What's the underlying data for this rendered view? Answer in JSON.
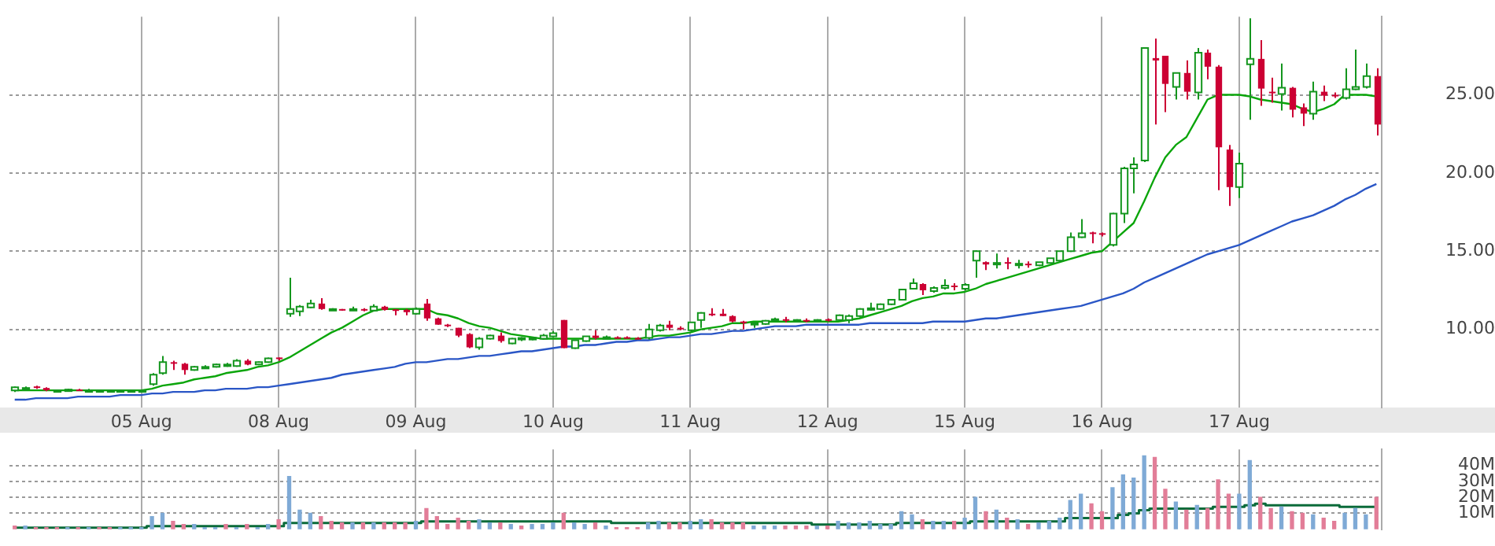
{
  "chart_data": [
    {
      "type": "candlestick",
      "categories": [
        null,
        null,
        null,
        null,
        null,
        null,
        null,
        null,
        null,
        null,
        null,
        null,
        "05 Aug",
        null,
        null,
        null,
        null,
        null,
        null,
        null,
        null,
        null,
        null,
        null,
        null,
        "08 Aug",
        null,
        null,
        null,
        null,
        null,
        null,
        null,
        null,
        null,
        null,
        null,
        null,
        "09 Aug",
        null,
        null,
        null,
        null,
        null,
        null,
        null,
        null,
        null,
        null,
        null,
        null,
        "10 Aug",
        null,
        null,
        null,
        null,
        null,
        null,
        null,
        null,
        null,
        null,
        null,
        null,
        "11 Aug",
        null,
        null,
        null,
        null,
        null,
        null,
        null,
        null,
        null,
        null,
        null,
        null,
        "12 Aug",
        null,
        null,
        null,
        null,
        null,
        null,
        null,
        null,
        null,
        null,
        null,
        null,
        "15 Aug",
        null,
        null,
        null,
        null,
        null,
        null,
        null,
        null,
        null,
        null,
        null,
        null,
        "16 Aug",
        null,
        null,
        null,
        null,
        null,
        null,
        null,
        null,
        null,
        null,
        null,
        null,
        "17 Aug",
        null,
        null,
        null,
        null,
        null,
        null,
        null,
        null,
        null,
        null,
        null,
        null,
        null
      ],
      "ohlc": [
        [
          6.1,
          6.35,
          6.0,
          6.3
        ],
        [
          6.25,
          6.35,
          6.2,
          6.25
        ],
        [
          6.35,
          6.4,
          6.2,
          6.25
        ],
        [
          6.25,
          6.3,
          6.05,
          6.1
        ],
        [
          6.1,
          6.15,
          6.05,
          6.1
        ],
        [
          6.1,
          6.2,
          6.05,
          6.15
        ],
        [
          6.15,
          6.2,
          6.1,
          6.1
        ],
        [
          6.1,
          6.2,
          6.05,
          6.1
        ],
        [
          6.1,
          6.15,
          6.05,
          6.1
        ],
        [
          6.1,
          6.15,
          6.05,
          6.1
        ],
        [
          6.05,
          6.15,
          6.0,
          6.1
        ],
        [
          6.1,
          6.15,
          6.05,
          6.1
        ],
        [
          6.1,
          6.15,
          6.05,
          6.1
        ],
        [
          6.5,
          7.2,
          6.4,
          7.1
        ],
        [
          7.2,
          8.3,
          7.1,
          7.9
        ],
        [
          7.9,
          8.0,
          7.4,
          7.8
        ],
        [
          7.8,
          7.85,
          7.1,
          7.4
        ],
        [
          7.4,
          7.65,
          7.35,
          7.6
        ],
        [
          7.6,
          7.7,
          7.5,
          7.6
        ],
        [
          7.6,
          7.8,
          7.55,
          7.75
        ],
        [
          7.75,
          7.85,
          7.6,
          7.75
        ],
        [
          7.65,
          8.1,
          7.6,
          8.0
        ],
        [
          8.0,
          8.1,
          7.7,
          7.75
        ],
        [
          7.75,
          7.95,
          7.7,
          7.9
        ],
        [
          7.9,
          8.2,
          7.85,
          8.15
        ],
        [
          8.2,
          8.2,
          8.0,
          8.15
        ],
        [
          11.0,
          13.3,
          10.8,
          11.3
        ],
        [
          11.15,
          11.55,
          10.85,
          11.45
        ],
        [
          11.4,
          11.9,
          11.35,
          11.65
        ],
        [
          11.65,
          12.0,
          11.25,
          11.3
        ],
        [
          11.3,
          11.35,
          11.2,
          11.3
        ],
        [
          11.3,
          11.3,
          11.2,
          11.25
        ],
        [
          11.25,
          11.45,
          11.2,
          11.3
        ],
        [
          11.3,
          11.35,
          11.15,
          11.25
        ],
        [
          11.2,
          11.6,
          11.15,
          11.45
        ],
        [
          11.45,
          11.5,
          11.2,
          11.25
        ],
        [
          11.28,
          11.3,
          10.9,
          11.25
        ],
        [
          11.25,
          11.3,
          10.9,
          11.1
        ],
        [
          11.0,
          11.4,
          10.95,
          11.3
        ],
        [
          11.65,
          11.95,
          10.55,
          10.7
        ],
        [
          10.7,
          10.75,
          10.3,
          10.3
        ],
        [
          10.3,
          10.35,
          10.15,
          10.2
        ],
        [
          10.1,
          10.1,
          9.5,
          9.6
        ],
        [
          9.7,
          9.75,
          8.8,
          8.85
        ],
        [
          8.85,
          9.5,
          8.7,
          9.4
        ],
        [
          9.4,
          9.65,
          9.35,
          9.6
        ],
        [
          9.6,
          9.8,
          9.15,
          9.25
        ],
        [
          9.1,
          9.45,
          9.05,
          9.4
        ],
        [
          9.45,
          9.5,
          9.25,
          9.45
        ],
        [
          9.4,
          9.5,
          9.3,
          9.45
        ],
        [
          9.4,
          9.7,
          9.35,
          9.6
        ],
        [
          9.55,
          9.9,
          9.5,
          9.75
        ],
        [
          10.6,
          10.6,
          8.8,
          8.8
        ],
        [
          8.8,
          9.3,
          8.75,
          9.3
        ],
        [
          9.25,
          9.55,
          9.2,
          9.55
        ],
        [
          9.6,
          9.95,
          9.35,
          9.45
        ],
        [
          9.5,
          9.6,
          9.4,
          9.5
        ],
        [
          9.5,
          9.55,
          9.4,
          9.4
        ],
        [
          9.5,
          9.55,
          9.4,
          9.4
        ],
        [
          9.45,
          9.5,
          9.35,
          9.4
        ],
        [
          9.45,
          10.35,
          9.35,
          10.0
        ],
        [
          9.95,
          10.35,
          9.85,
          10.25
        ],
        [
          10.3,
          10.55,
          9.95,
          10.1
        ],
        [
          10.1,
          10.2,
          9.95,
          10.05
        ],
        [
          9.95,
          10.45,
          9.85,
          10.45
        ],
        [
          10.6,
          11.1,
          10.1,
          11.05
        ],
        [
          11.0,
          11.35,
          10.85,
          10.95
        ],
        [
          11.0,
          11.3,
          10.85,
          10.85
        ],
        [
          10.85,
          10.9,
          10.45,
          10.5
        ],
        [
          10.5,
          10.55,
          10.0,
          10.4
        ],
        [
          10.35,
          10.45,
          10.1,
          10.4
        ],
        [
          10.35,
          10.6,
          10.3,
          10.55
        ],
        [
          10.6,
          10.75,
          10.5,
          10.65
        ],
        [
          10.65,
          10.8,
          10.45,
          10.6
        ],
        [
          10.55,
          10.65,
          10.45,
          10.6
        ],
        [
          10.6,
          10.7,
          10.45,
          10.5
        ],
        [
          10.55,
          10.65,
          10.45,
          10.6
        ],
        [
          10.65,
          10.7,
          10.5,
          10.55
        ],
        [
          10.6,
          10.95,
          10.55,
          10.9
        ],
        [
          10.6,
          10.95,
          10.4,
          10.85
        ],
        [
          10.85,
          11.35,
          10.8,
          11.3
        ],
        [
          11.3,
          11.7,
          11.2,
          11.35
        ],
        [
          11.3,
          11.65,
          11.25,
          11.6
        ],
        [
          11.6,
          11.95,
          11.55,
          11.9
        ],
        [
          11.9,
          12.55,
          11.85,
          12.55
        ],
        [
          12.6,
          13.25,
          12.55,
          12.95
        ],
        [
          12.9,
          12.95,
          12.2,
          12.5
        ],
        [
          12.45,
          12.75,
          12.35,
          12.65
        ],
        [
          12.65,
          13.2,
          12.55,
          12.8
        ],
        [
          12.8,
          12.95,
          12.5,
          12.75
        ],
        [
          12.6,
          12.95,
          12.5,
          12.85
        ],
        [
          14.4,
          15.05,
          13.3,
          15.0
        ],
        [
          14.3,
          14.35,
          13.8,
          14.15
        ],
        [
          14.2,
          14.85,
          13.9,
          14.25
        ],
        [
          14.3,
          14.6,
          13.85,
          14.2
        ],
        [
          14.15,
          14.45,
          13.9,
          14.2
        ],
        [
          14.2,
          14.35,
          13.95,
          14.15
        ],
        [
          14.1,
          14.3,
          14.05,
          14.3
        ],
        [
          14.25,
          14.55,
          14.2,
          14.55
        ],
        [
          14.4,
          15.0,
          14.3,
          15.0
        ],
        [
          15.0,
          16.2,
          14.95,
          15.9
        ],
        [
          15.9,
          17.05,
          15.85,
          16.15
        ],
        [
          16.2,
          16.25,
          15.5,
          16.1
        ],
        [
          16.15,
          16.2,
          15.95,
          16.1
        ],
        [
          15.4,
          17.45,
          15.3,
          17.4
        ],
        [
          17.4,
          20.4,
          16.8,
          20.3
        ],
        [
          20.3,
          21.0,
          18.7,
          20.55
        ],
        [
          20.8,
          28.05,
          20.7,
          28.0
        ],
        [
          27.35,
          28.6,
          23.1,
          27.2
        ],
        [
          27.5,
          27.5,
          23.9,
          25.7
        ],
        [
          25.5,
          26.4,
          24.7,
          26.4
        ],
        [
          26.4,
          27.2,
          24.7,
          25.2
        ],
        [
          25.15,
          28.0,
          24.7,
          27.7
        ],
        [
          27.7,
          27.9,
          26.0,
          26.8
        ],
        [
          26.8,
          26.9,
          18.9,
          21.65
        ],
        [
          21.5,
          21.8,
          17.9,
          19.1
        ],
        [
          19.1,
          21.3,
          18.4,
          20.6
        ],
        [
          26.95,
          29.9,
          23.4,
          27.3
        ],
        [
          27.3,
          28.5,
          24.3,
          25.4
        ],
        [
          25.2,
          26.1,
          24.5,
          25.1
        ],
        [
          25.05,
          27.0,
          24.0,
          25.45
        ],
        [
          25.45,
          25.5,
          23.55,
          24.05
        ],
        [
          24.2,
          24.45,
          23.0,
          23.8
        ],
        [
          23.8,
          25.85,
          23.4,
          25.2
        ],
        [
          25.2,
          25.6,
          24.6,
          24.95
        ],
        [
          25.0,
          25.15,
          24.8,
          24.95
        ],
        [
          24.8,
          26.7,
          24.7,
          25.35
        ],
        [
          25.35,
          27.9,
          25.3,
          25.5
        ],
        [
          25.5,
          27.0,
          25.4,
          26.2
        ],
        [
          26.2,
          26.7,
          22.4,
          23.1
        ]
      ],
      "series": [
        {
          "type": "line",
          "color": "#0aa50a",
          "values": [
            6.1,
            6.1,
            6.1,
            6.1,
            6.1,
            6.1,
            6.1,
            6.1,
            6.1,
            6.1,
            6.1,
            6.1,
            6.1,
            6.2,
            6.4,
            6.5,
            6.6,
            6.8,
            6.9,
            7.0,
            7.2,
            7.3,
            7.4,
            7.6,
            7.7,
            7.9,
            8.2,
            8.6,
            9.0,
            9.4,
            9.8,
            10.1,
            10.5,
            10.9,
            11.2,
            11.3,
            11.3,
            11.3,
            11.3,
            11.3,
            11.0,
            10.9,
            10.7,
            10.4,
            10.2,
            10.1,
            9.9,
            9.7,
            9.6,
            9.5,
            9.4,
            9.4,
            9.4,
            9.4,
            9.4,
            9.4,
            9.4,
            9.4,
            9.4,
            9.4,
            9.5,
            9.6,
            9.6,
            9.7,
            9.8,
            10.0,
            10.1,
            10.2,
            10.4,
            10.4,
            10.5,
            10.5,
            10.5,
            10.5,
            10.5,
            10.5,
            10.5,
            10.5,
            10.5,
            10.6,
            10.7,
            10.9,
            11.1,
            11.3,
            11.5,
            11.8,
            12.0,
            12.1,
            12.3,
            12.3,
            12.4,
            12.6,
            12.9,
            13.1,
            13.3,
            13.5,
            13.7,
            13.9,
            14.1,
            14.3,
            14.5,
            14.7,
            14.9,
            15.0,
            15.6,
            16.2,
            16.8,
            18.2,
            19.7,
            21.0,
            21.8,
            22.3,
            23.5,
            24.7,
            25.0,
            25.0,
            25.0,
            24.9,
            24.7,
            24.6,
            24.5,
            24.4,
            24.1,
            23.9,
            24.1,
            24.4,
            25.0,
            25.0,
            25.0,
            24.9
          ]
        },
        {
          "type": "line",
          "color": "#2a56c6",
          "values": [
            5.5,
            5.5,
            5.6,
            5.6,
            5.6,
            5.6,
            5.7,
            5.7,
            5.7,
            5.7,
            5.8,
            5.8,
            5.8,
            5.9,
            5.9,
            6.0,
            6.0,
            6.0,
            6.1,
            6.1,
            6.2,
            6.2,
            6.2,
            6.3,
            6.3,
            6.4,
            6.5,
            6.6,
            6.7,
            6.8,
            6.9,
            7.1,
            7.2,
            7.3,
            7.4,
            7.5,
            7.6,
            7.8,
            7.9,
            7.9,
            8.0,
            8.1,
            8.1,
            8.2,
            8.3,
            8.3,
            8.4,
            8.5,
            8.6,
            8.6,
            8.7,
            8.8,
            8.9,
            8.9,
            9.0,
            9.0,
            9.1,
            9.2,
            9.2,
            9.3,
            9.3,
            9.4,
            9.5,
            9.5,
            9.6,
            9.7,
            9.7,
            9.8,
            9.9,
            9.9,
            10.0,
            10.1,
            10.2,
            10.2,
            10.2,
            10.3,
            10.3,
            10.3,
            10.3,
            10.3,
            10.3,
            10.4,
            10.4,
            10.4,
            10.4,
            10.4,
            10.4,
            10.5,
            10.5,
            10.5,
            10.5,
            10.6,
            10.7,
            10.7,
            10.8,
            10.9,
            11.0,
            11.1,
            11.2,
            11.3,
            11.4,
            11.5,
            11.7,
            11.9,
            12.1,
            12.3,
            12.6,
            13.0,
            13.3,
            13.6,
            13.9,
            14.2,
            14.5,
            14.8,
            15.0,
            15.2,
            15.4,
            15.7,
            16.0,
            16.3,
            16.6,
            16.9,
            17.1,
            17.3,
            17.6,
            17.9,
            18.3,
            18.6,
            19.0,
            19.3
          ]
        }
      ],
      "ylim": [
        5,
        30
      ],
      "yticks": [
        {
          "value": 10,
          "label": "10.00"
        },
        {
          "value": 15,
          "label": "15.00"
        },
        {
          "value": 20,
          "label": "20.00"
        },
        {
          "value": 25,
          "label": "25.00"
        }
      ],
      "grid": true
    },
    {
      "type": "bar",
      "categories": [
        null,
        null,
        null,
        null,
        null,
        null,
        null,
        null,
        null,
        null,
        null,
        null,
        null,
        null,
        null,
        null,
        null,
        null,
        null,
        null,
        null,
        null,
        null,
        null,
        null,
        null,
        null,
        null,
        null,
        null,
        null,
        null,
        null,
        null,
        null,
        null,
        null,
        null,
        null,
        null,
        null,
        null,
        null,
        null,
        null,
        null,
        null,
        null,
        null,
        null,
        null,
        null,
        null,
        null,
        null,
        null,
        null,
        null,
        null,
        null,
        null,
        null,
        null,
        null,
        null,
        null,
        null,
        null,
        null,
        null,
        null,
        null,
        null,
        null,
        null,
        null,
        null,
        null,
        null,
        null,
        null,
        null,
        null,
        null,
        null,
        null,
        null,
        null,
        null,
        null,
        null,
        null,
        null,
        null,
        null,
        null,
        null,
        null,
        null,
        null,
        null,
        null,
        null,
        null,
        null,
        null,
        null,
        null,
        null,
        null,
        null,
        null,
        null,
        null,
        null,
        null,
        null,
        null,
        null,
        null,
        null,
        null,
        null,
        null,
        null,
        null,
        null,
        null,
        null,
        null
      ],
      "series": [
        {
          "type": "bar",
          "values": [
            2,
            2,
            1,
            1,
            1,
            1,
            1,
            1,
            1,
            1,
            1,
            1,
            1,
            8,
            10,
            5,
            3,
            3,
            1,
            1,
            3,
            1,
            3,
            1,
            3,
            6,
            33,
            12,
            10,
            8,
            5,
            4,
            4,
            4,
            4,
            4,
            4,
            4,
            5,
            13,
            8,
            3,
            7,
            5,
            6,
            4,
            4,
            3,
            2,
            3,
            3,
            4,
            10,
            4,
            3,
            4,
            2,
            1,
            1,
            1,
            4,
            5,
            4,
            4,
            5,
            6,
            6,
            4,
            4,
            4,
            2,
            2,
            2,
            2,
            2,
            2,
            2,
            2,
            5,
            4,
            4,
            5,
            3,
            3,
            11,
            9,
            6,
            5,
            5,
            5,
            7,
            20,
            11,
            12,
            7,
            6,
            3,
            4,
            5,
            7,
            18,
            22,
            16,
            11,
            26,
            34,
            32,
            46,
            45,
            25,
            17,
            12,
            15,
            13,
            31,
            22,
            22,
            43,
            20,
            13,
            14,
            11,
            10,
            9,
            7,
            5,
            10,
            13,
            9,
            20
          ],
          "colors": [
            "#e27d98",
            "#7faad6",
            "#e27d98",
            "#e27d98",
            "#e27d98",
            "#7faad6",
            "#e27d98",
            "#7faad6",
            "#e27d98",
            "#e27d98",
            "#7faad6",
            "#7faad6",
            "#7faad6",
            "#7faad6",
            "#7faad6",
            "#e27d98",
            "#e27d98",
            "#7faad6",
            "#7faad6",
            "#7faad6",
            "#e27d98",
            "#7faad6",
            "#e27d98",
            "#7faad6",
            "#7faad6",
            "#e27d98",
            "#7faad6",
            "#7faad6",
            "#7faad6",
            "#e27d98",
            "#e27d98",
            "#e27d98",
            "#7faad6",
            "#e27d98",
            "#7faad6",
            "#e27d98",
            "#e27d98",
            "#e27d98",
            "#7faad6",
            "#e27d98",
            "#e27d98",
            "#e27d98",
            "#e27d98",
            "#e27d98",
            "#7faad6",
            "#7faad6",
            "#e27d98",
            "#7faad6",
            "#e27d98",
            "#7faad6",
            "#7faad6",
            "#7faad6",
            "#e27d98",
            "#7faad6",
            "#7faad6",
            "#e27d98",
            "#7faad6",
            "#e27d98",
            "#e27d98",
            "#e27d98",
            "#7faad6",
            "#7faad6",
            "#e27d98",
            "#e27d98",
            "#7faad6",
            "#7faad6",
            "#e27d98",
            "#e27d98",
            "#e27d98",
            "#e27d98",
            "#7faad6",
            "#7faad6",
            "#7faad6",
            "#e27d98",
            "#e27d98",
            "#e27d98",
            "#7faad6",
            "#e27d98",
            "#7faad6",
            "#7faad6",
            "#7faad6",
            "#7faad6",
            "#7faad6",
            "#7faad6",
            "#7faad6",
            "#7faad6",
            "#e27d98",
            "#7faad6",
            "#7faad6",
            "#e27d98",
            "#7faad6",
            "#7faad6",
            "#e27d98",
            "#7faad6",
            "#e27d98",
            "#7faad6",
            "#e27d98",
            "#7faad6",
            "#7faad6",
            "#7faad6",
            "#7faad6",
            "#7faad6",
            "#e27d98",
            "#e27d98",
            "#7faad6",
            "#7faad6",
            "#7faad6",
            "#7faad6",
            "#e27d98",
            "#e27d98",
            "#7faad6",
            "#e27d98",
            "#7faad6",
            "#e27d98",
            "#e27d98",
            "#e27d98",
            "#7faad6",
            "#7faad6",
            "#e27d98",
            "#e27d98",
            "#7faad6",
            "#e27d98",
            "#e27d98",
            "#7faad6",
            "#e27d98",
            "#e27d98",
            "#7faad6",
            "#7faad6",
            "#7faad6",
            "#e27d98"
          ]
        },
        {
          "type": "step",
          "color": "#0b6b3a",
          "values": [
            1,
            1,
            1,
            1,
            1,
            1,
            1,
            1,
            1,
            1,
            1,
            1,
            1,
            2,
            2,
            2,
            2,
            2,
            2,
            2,
            2,
            2,
            2,
            2,
            2,
            2,
            4,
            4,
            4,
            4,
            4,
            4,
            4,
            4,
            4,
            4,
            4,
            4,
            4,
            5,
            5,
            5,
            5,
            5,
            5,
            5,
            5,
            5,
            5,
            5,
            5,
            5,
            5,
            5,
            5,
            5,
            5,
            4,
            4,
            4,
            4,
            4,
            4,
            4,
            4,
            4,
            4,
            4,
            4,
            4,
            4,
            4,
            4,
            4,
            4,
            4,
            3,
            3,
            3,
            3,
            3,
            3,
            3,
            3,
            4,
            4,
            4,
            4,
            4,
            4,
            4,
            5,
            5,
            5,
            5,
            5,
            5,
            5,
            5,
            5,
            7,
            7,
            7,
            7,
            7,
            9,
            10,
            12,
            13,
            13,
            13,
            13,
            13,
            13,
            14,
            14,
            14,
            15,
            16,
            15,
            15,
            15,
            15,
            15,
            15,
            15,
            14,
            14,
            14,
            14
          ]
        }
      ],
      "ylim": [
        0,
        50
      ],
      "yticks": [
        {
          "value": 10,
          "label": "10M"
        },
        {
          "value": 20,
          "label": "20M"
        },
        {
          "value": 30,
          "label": "30M"
        },
        {
          "value": 40,
          "label": "40M"
        }
      ],
      "grid": true,
      "tick_labels": "y"
    }
  ]
}
